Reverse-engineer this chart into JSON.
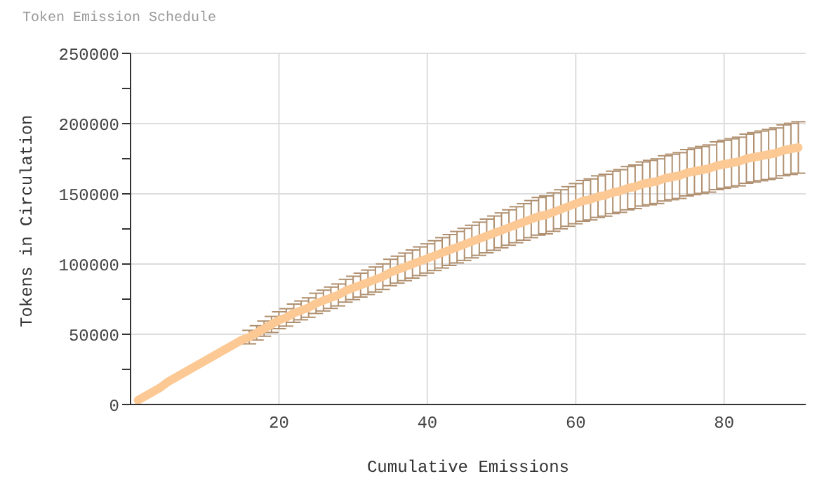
{
  "chart_data": {
    "type": "line",
    "title": "Token Emission Schedule",
    "xlabel": "Cumulative Emissions",
    "ylabel": "Tokens in Circulation",
    "x": [
      1,
      2,
      3,
      4,
      5,
      6,
      7,
      8,
      9,
      10,
      11,
      12,
      13,
      14,
      15,
      16,
      17,
      18,
      19,
      20,
      21,
      22,
      23,
      24,
      25,
      26,
      27,
      28,
      29,
      30,
      31,
      32,
      33,
      34,
      35,
      36,
      37,
      38,
      39,
      40,
      41,
      42,
      43,
      44,
      45,
      46,
      47,
      48,
      49,
      50,
      51,
      52,
      53,
      54,
      55,
      56,
      57,
      58,
      59,
      60,
      61,
      62,
      63,
      64,
      65,
      66,
      67,
      68,
      69,
      70,
      71,
      72,
      73,
      74,
      75,
      76,
      77,
      78,
      79,
      80,
      81,
      82,
      83,
      84,
      85,
      86,
      87,
      88,
      89,
      90
    ],
    "series": [
      {
        "color": "#fcc995",
        "values": [
          3000,
          6000,
          9000,
          12000,
          16000,
          19000,
          22000,
          25000,
          28000,
          31000,
          34000,
          37000,
          40000,
          43000,
          46000,
          48000,
          51000,
          54000,
          57000,
          60000,
          62000,
          65000,
          67000,
          69000,
          72000,
          74000,
          76000,
          78000,
          81000,
          83000,
          85000,
          87000,
          89000,
          91000,
          94000,
          96000,
          98000,
          100000,
          102000,
          104000,
          106000,
          108000,
          110000,
          112000,
          114000,
          116000,
          118000,
          120000,
          122000,
          124000,
          126000,
          128000,
          130000,
          132000,
          134000,
          135000,
          137000,
          139000,
          141000,
          143000,
          145000,
          146000,
          148000,
          149000,
          151000,
          152000,
          154000,
          155000,
          157000,
          158000,
          159000,
          161000,
          162000,
          163000,
          165000,
          166000,
          167000,
          168000,
          170000,
          171000,
          172000,
          173000,
          175000,
          176000,
          177000,
          178000,
          179000,
          181000,
          182000,
          183000
        ],
        "errors": [
          null,
          null,
          null,
          null,
          null,
          null,
          null,
          null,
          null,
          null,
          null,
          null,
          null,
          null,
          null,
          4800,
          5100,
          5400,
          5700,
          6000,
          6200,
          6500,
          6700,
          6900,
          7200,
          7400,
          7600,
          7800,
          8100,
          8300,
          8500,
          8700,
          8900,
          9100,
          9400,
          9600,
          9800,
          10000,
          10200,
          10400,
          10600,
          10800,
          11000,
          11200,
          11400,
          11600,
          11800,
          12000,
          12200,
          12400,
          12600,
          12800,
          13000,
          13200,
          13400,
          13500,
          13700,
          13900,
          14100,
          14300,
          14500,
          14600,
          14800,
          14900,
          15100,
          15200,
          15400,
          15500,
          15700,
          15800,
          15900,
          16100,
          16200,
          16300,
          16500,
          16600,
          16700,
          16800,
          17000,
          17100,
          17200,
          17300,
          17500,
          17600,
          17700,
          17800,
          17900,
          18100,
          18200,
          18300
        ]
      }
    ],
    "xlim": [
      0,
      91
    ],
    "xticks": [
      20,
      40,
      60,
      80
    ],
    "ylim": [
      0,
      250000
    ],
    "yticks": [
      0,
      {
        "value": 25000,
        "label": null
      },
      50000,
      {
        "value": 75000,
        "label": null
      },
      100000,
      {
        "value": 125000,
        "label": null
      },
      150000,
      {
        "value": 175000,
        "label": null
      },
      200000,
      {
        "value": 225000,
        "label": null
      },
      250000
    ],
    "grid": true,
    "marker": "none",
    "line_style": "solid"
  }
}
